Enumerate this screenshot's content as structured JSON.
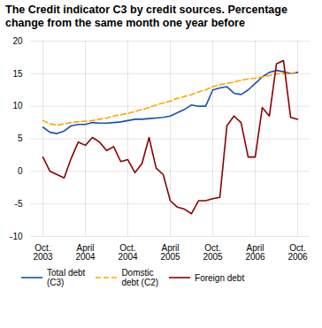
{
  "chart_data": {
    "type": "line",
    "title": "The Credit indicator C3 by credit sources. Percentage\nchange from the same month one year before",
    "categories": [
      "Oct.\n2003",
      null,
      null,
      null,
      null,
      null,
      "April\n2004",
      null,
      null,
      null,
      null,
      null,
      "Oct.\n2004",
      null,
      null,
      null,
      null,
      null,
      "April\n2005",
      null,
      null,
      null,
      null,
      null,
      "Oct.\n2005",
      null,
      null,
      null,
      null,
      null,
      "April\n2006",
      null,
      null,
      null,
      null,
      null,
      "Oct.\n2006"
    ],
    "series": [
      {
        "name": "Total debt\n(C3)",
        "color": "#1a4faf",
        "line_style": "solid",
        "values": [
          6.8,
          6.0,
          5.8,
          6.2,
          7.0,
          7.2,
          7.2,
          7.5,
          7.4,
          7.4,
          7.5,
          7.6,
          7.8,
          8.0,
          8.0,
          8.1,
          8.2,
          8.3,
          8.5,
          9.0,
          9.5,
          10.2,
          10.0,
          10.0,
          12.5,
          12.8,
          13.0,
          12.0,
          11.8,
          12.5,
          13.5,
          14.5,
          15.2,
          15.5,
          15.3,
          15.0,
          15.2
        ]
      },
      {
        "name": "Domstic\ndebt (C2)",
        "color": "#ffa500",
        "line_style": "dashed",
        "values": [
          7.8,
          7.3,
          7.1,
          7.3,
          7.5,
          7.6,
          7.7,
          7.8,
          8.0,
          8.2,
          8.5,
          8.7,
          8.9,
          9.2,
          9.5,
          9.8,
          10.2,
          10.5,
          10.8,
          11.2,
          11.5,
          11.8,
          12.2,
          12.5,
          13.0,
          13.3,
          13.5,
          13.7,
          14.0,
          14.2,
          14.3,
          14.5,
          14.7,
          15.0,
          15.0,
          15.0,
          15.2
        ]
      },
      {
        "name": "Foreign debt",
        "color": "#8b0000",
        "line_style": "solid",
        "values": [
          2.2,
          0.0,
          -0.5,
          -1.0,
          2.0,
          4.5,
          4.0,
          5.2,
          4.5,
          3.2,
          3.8,
          1.5,
          1.8,
          -0.2,
          1.2,
          5.2,
          0.5,
          -0.5,
          -4.5,
          -5.5,
          -5.8,
          -6.5,
          -4.5,
          -4.5,
          -4.2,
          -4.0,
          7.0,
          8.5,
          7.5,
          2.2,
          2.2,
          9.8,
          8.5,
          16.5,
          17.0,
          8.3,
          8.0
        ]
      }
    ],
    "ylim": [
      -10,
      20
    ],
    "yticks": [
      -10,
      -5,
      0,
      5,
      10,
      15,
      20
    ],
    "grid": true,
    "legend": "bottom"
  }
}
